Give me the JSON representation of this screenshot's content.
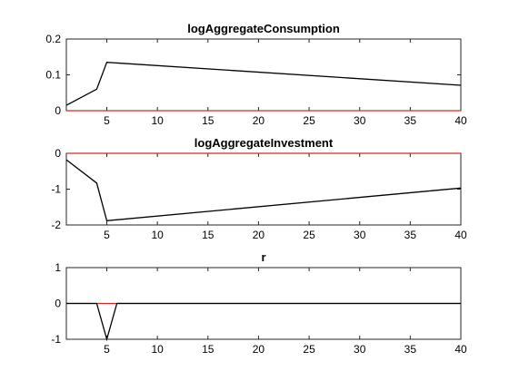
{
  "chart_data": [
    {
      "type": "line",
      "title": "logAggregateConsumption",
      "xlabel": "",
      "ylabel": "",
      "xlim": [
        1,
        40
      ],
      "ylim": [
        0,
        0.2
      ],
      "x_ticks": [
        5,
        10,
        15,
        20,
        25,
        30,
        35,
        40
      ],
      "y_ticks": [
        0,
        0.1,
        0.2
      ],
      "y_tick_labels": [
        "0",
        "0.1",
        "0.2"
      ],
      "grid": false,
      "series": [
        {
          "color": "#000000",
          "x": [
            1,
            4,
            5,
            40
          ],
          "y": [
            0.015,
            0.06,
            0.135,
            0.071
          ]
        },
        {
          "color": "#d62728",
          "x": [
            1,
            40
          ],
          "y": [
            0,
            0
          ]
        }
      ]
    },
    {
      "type": "line",
      "title": "logAggregateInvestment",
      "xlabel": "",
      "ylabel": "",
      "xlim": [
        1,
        40
      ],
      "ylim": [
        -2,
        0
      ],
      "x_ticks": [
        5,
        10,
        15,
        20,
        25,
        30,
        35,
        40
      ],
      "y_ticks": [
        -2,
        -1,
        0
      ],
      "y_tick_labels": [
        "-2",
        "-1",
        "0"
      ],
      "grid": false,
      "series": [
        {
          "color": "#000000",
          "x": [
            1,
            4,
            5,
            40
          ],
          "y": [
            -0.18,
            -0.83,
            -1.88,
            -0.97
          ]
        },
        {
          "color": "#d62728",
          "x": [
            1,
            40
          ],
          "y": [
            0,
            0
          ]
        }
      ]
    },
    {
      "type": "line",
      "title": "r",
      "xlabel": "",
      "ylabel": "",
      "xlim": [
        1,
        40
      ],
      "ylim": [
        -1,
        1
      ],
      "x_ticks": [
        5,
        10,
        15,
        20,
        25,
        30,
        35,
        40
      ],
      "y_ticks": [
        -1,
        0,
        1
      ],
      "y_tick_labels": [
        "-1",
        "0",
        "1"
      ],
      "grid": false,
      "series": [
        {
          "color": "#000000",
          "x": [
            1,
            4,
            5,
            6,
            40
          ],
          "y": [
            0,
            0,
            -1,
            0,
            0
          ]
        },
        {
          "color": "#d62728",
          "x": [
            1,
            40
          ],
          "y": [
            0,
            0
          ]
        }
      ]
    }
  ]
}
